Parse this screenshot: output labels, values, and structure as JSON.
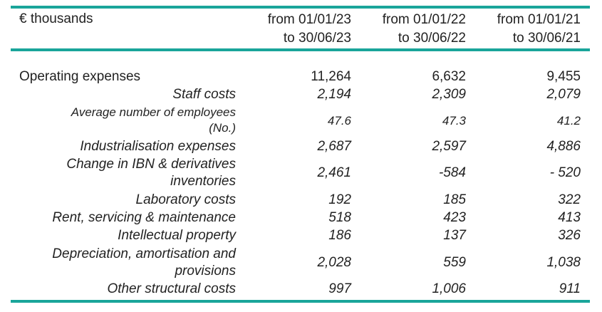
{
  "header": {
    "unit": "€ thousands",
    "columns": [
      {
        "line1": "from 01/01/23",
        "line2": "to 30/06/23"
      },
      {
        "line1": "from 01/01/22",
        "line2": "to 30/06/22"
      },
      {
        "line1": "from 01/01/21",
        "line2": "to 30/06/21"
      }
    ]
  },
  "rows": [
    {
      "label": "Operating expenses",
      "values": [
        "11,264",
        "6,632",
        "9,455"
      ]
    },
    {
      "label": "Staff costs",
      "values": [
        "2,194",
        "2,309",
        "2,079"
      ]
    },
    {
      "label_line1": "Average number of employees",
      "label_line2": "(No.)",
      "values": [
        "47.6",
        "47.3",
        "41.2"
      ]
    },
    {
      "label": "Industrialisation expenses",
      "values": [
        "2,687",
        "2,597",
        "4,886"
      ]
    },
    {
      "label_line1": "Change in IBN & derivatives",
      "label_line2": "inventories",
      "values": [
        "2,461",
        "-584",
        "- 520"
      ]
    },
    {
      "label": "Laboratory costs",
      "values": [
        "192",
        "185",
        "322"
      ]
    },
    {
      "label": "Rent, servicing & maintenance",
      "values": [
        "518",
        "423",
        "413"
      ]
    },
    {
      "label": "Intellectual property",
      "values": [
        "186",
        "137",
        "326"
      ]
    },
    {
      "label_line1": "Depreciation, amortisation and",
      "label_line2": "provisions",
      "values": [
        "2,028",
        "559",
        "1,038"
      ]
    },
    {
      "label": "Other structural costs",
      "values": [
        "997",
        "1,006",
        "911"
      ]
    }
  ],
  "colors": {
    "rule": "#1aa59a",
    "text": "#222222"
  }
}
